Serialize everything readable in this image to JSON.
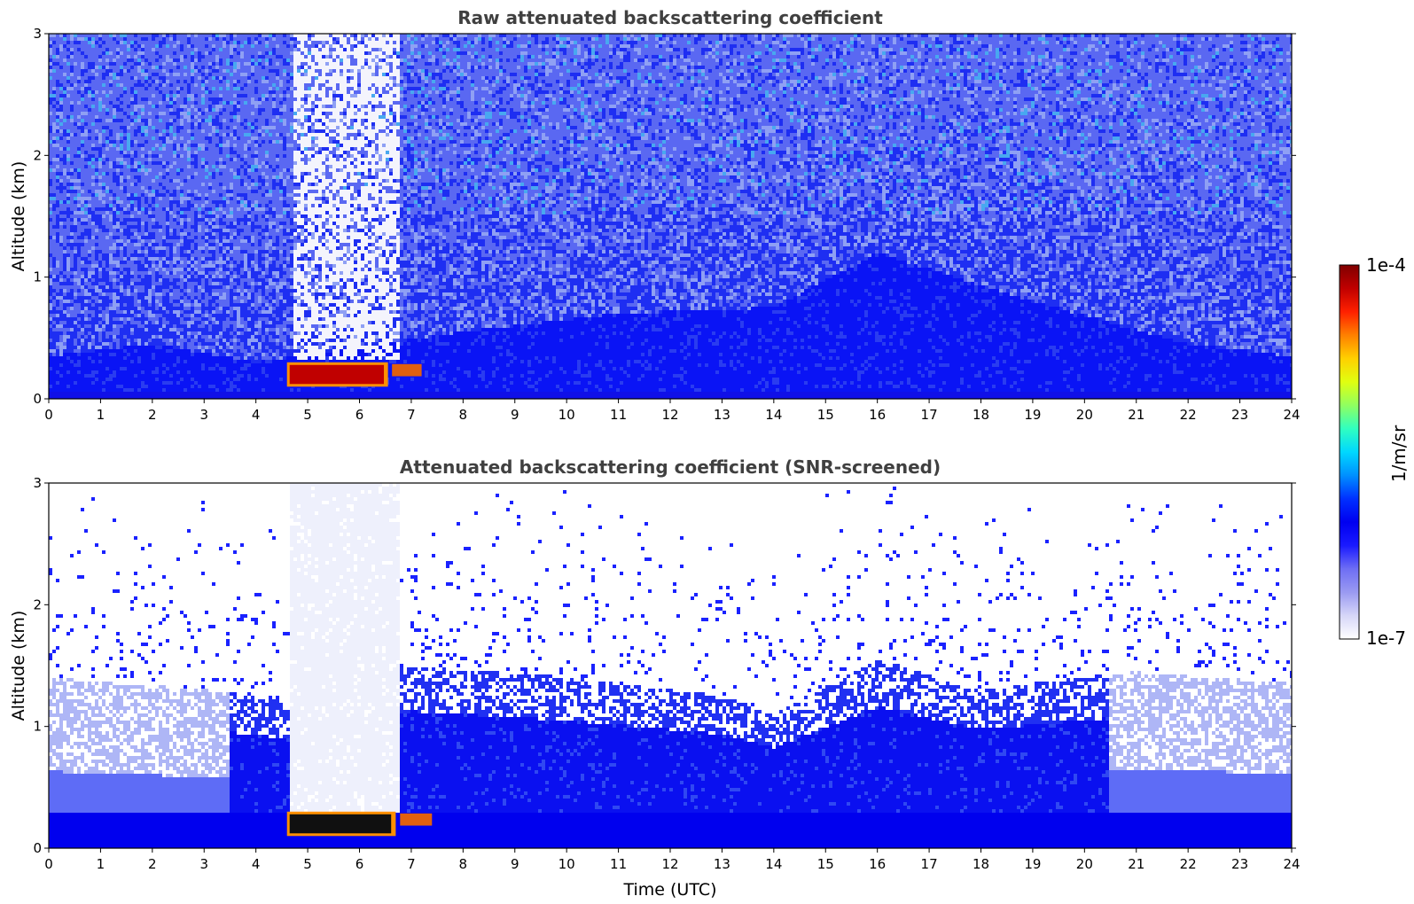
{
  "chart_data": [
    {
      "type": "heatmap",
      "id": "raw",
      "title": "Raw attenuated backscattering coefficient",
      "xlabel": "",
      "ylabel": "Altitude (km)",
      "xlim": [
        0,
        24
      ],
      "ylim": [
        0,
        3
      ],
      "xticks": [
        "0",
        "1",
        "2",
        "3",
        "4",
        "5",
        "6",
        "7",
        "8",
        "9",
        "10",
        "11",
        "12",
        "13",
        "14",
        "15",
        "16",
        "17",
        "18",
        "19",
        "20",
        "21",
        "22",
        "23",
        "24"
      ],
      "yticks": [
        "0",
        "1",
        "2",
        "3"
      ],
      "screened": false,
      "features": {
        "aerosol_layer_top_km": [
          {
            "t": 0,
            "z": 0.35
          },
          {
            "t": 2,
            "z": 0.45
          },
          {
            "t": 4,
            "z": 0.3
          },
          {
            "t": 8,
            "z": 0.55
          },
          {
            "t": 11,
            "z": 0.7
          },
          {
            "t": 14,
            "z": 0.75
          },
          {
            "t": 16,
            "z": 1.2
          },
          {
            "t": 19,
            "z": 0.8
          },
          {
            "t": 22,
            "z": 0.45
          },
          {
            "t": 24,
            "z": 0.35
          }
        ],
        "low_cloud": {
          "t_start": 4.6,
          "t_end": 7.2,
          "z_bottom": 0.1,
          "z_top": 0.3
        },
        "signal_gaps": {
          "t_start": 4.7,
          "t_end": 6.8
        }
      }
    },
    {
      "type": "heatmap",
      "id": "snr",
      "title": "Attenuated backscattering coefficient (SNR-screened)",
      "xlabel": "Time (UTC)",
      "ylabel": "Altitude (km)",
      "xlim": [
        0,
        24
      ],
      "ylim": [
        0,
        3
      ],
      "xticks": [
        "0",
        "1",
        "2",
        "3",
        "4",
        "5",
        "6",
        "7",
        "8",
        "9",
        "10",
        "11",
        "12",
        "13",
        "14",
        "15",
        "16",
        "17",
        "18",
        "19",
        "20",
        "21",
        "22",
        "23",
        "24"
      ],
      "yticks": [
        "0",
        "1",
        "2",
        "3"
      ],
      "screened": true,
      "features": {
        "boundary_layer_top_km": [
          {
            "t": 0,
            "z": 1.4
          },
          {
            "t": 3,
            "z": 1.3
          },
          {
            "t": 4.6,
            "z": 1.2
          },
          {
            "t": 7,
            "z": 1.5
          },
          {
            "t": 10,
            "z": 1.4
          },
          {
            "t": 13,
            "z": 1.25
          },
          {
            "t": 14,
            "z": 1.1
          },
          {
            "t": 16,
            "z": 1.55
          },
          {
            "t": 18,
            "z": 1.3
          },
          {
            "t": 21,
            "z": 1.45
          },
          {
            "t": 24,
            "z": 1.35
          }
        ],
        "low_cloud": {
          "t_start": 4.6,
          "t_end": 7.4,
          "z_bottom": 0.1,
          "z_top": 0.3
        },
        "cleared_column": {
          "t_start": 4.65,
          "t_end": 6.8
        }
      }
    }
  ],
  "colorbar": {
    "label": "1/m/sr",
    "max_label": "1e-4",
    "min_label": "1e-7",
    "range": [
      1e-07,
      0.0001
    ],
    "colors": [
      "#ffffff",
      "#d6d6f8",
      "#9a9af2",
      "#6e6ef4",
      "#1a1aff",
      "#0000f0",
      "#0030ff",
      "#0090ff",
      "#00d8ff",
      "#30ffc0",
      "#90ff60",
      "#e0ff10",
      "#ffd000",
      "#ff8000",
      "#ff2000",
      "#c00000",
      "#800000"
    ]
  }
}
